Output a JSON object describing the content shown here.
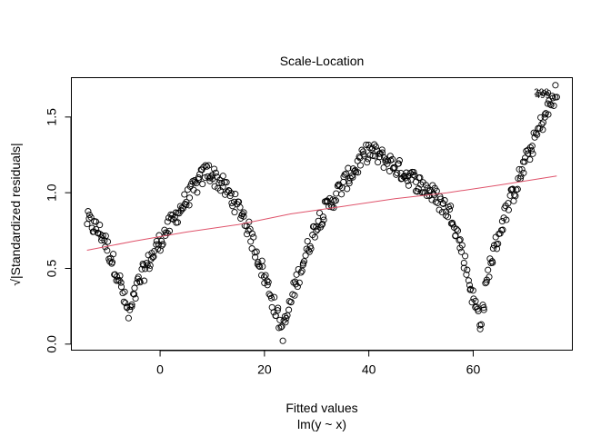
{
  "chart_data": {
    "type": "scatter",
    "title": "Scale-Location",
    "xlabel": "Fitted values",
    "sublabel": "lm(y ~ x)",
    "ylabel": "√|Standardized residuals|",
    "xlim": [
      -17,
      79
    ],
    "ylim": [
      -0.04,
      1.76
    ],
    "xticks": [
      0,
      20,
      40,
      60
    ],
    "yticks": [
      0.0,
      0.5,
      1.0,
      1.5
    ],
    "ytick_labels": [
      "0.0",
      "0.5",
      "1.0",
      "1.5"
    ],
    "grid": false,
    "legend": "none",
    "point_style": "open-circle",
    "point_color": "#000000",
    "smoother_color": "#df536b",
    "n_points": 500,
    "x_range": [
      -14,
      76
    ],
    "profile": {
      "x": [
        -14,
        -11,
        -8,
        -6,
        -4,
        0,
        4,
        9,
        12,
        16,
        19,
        21,
        23.5,
        26,
        30,
        35,
        40,
        44,
        48,
        52,
        56,
        58,
        60,
        61.5,
        63,
        66,
        70,
        73,
        76
      ],
      "y": [
        0.82,
        0.72,
        0.45,
        0.18,
        0.42,
        0.68,
        0.9,
        1.15,
        1.05,
        0.85,
        0.55,
        0.35,
        0.08,
        0.4,
        0.8,
        1.05,
        1.28,
        1.2,
        1.1,
        1.0,
        0.85,
        0.6,
        0.3,
        0.14,
        0.5,
        0.85,
        1.2,
        1.45,
        1.67
      ]
    },
    "smoother": {
      "x": [
        -14,
        -5,
        5,
        15,
        25,
        35,
        45,
        55,
        65,
        76
      ],
      "y": [
        0.62,
        0.68,
        0.74,
        0.79,
        0.86,
        0.91,
        0.96,
        1.0,
        1.05,
        1.11
      ]
    },
    "labeled_points": [
      {
        "label": "298",
        "x": 75.6,
        "y": 1.67
      },
      {
        "label": "499",
        "x": 75.8,
        "y": 1.65
      },
      {
        "label": "500",
        "x": 76.0,
        "y": 1.66
      }
    ]
  }
}
